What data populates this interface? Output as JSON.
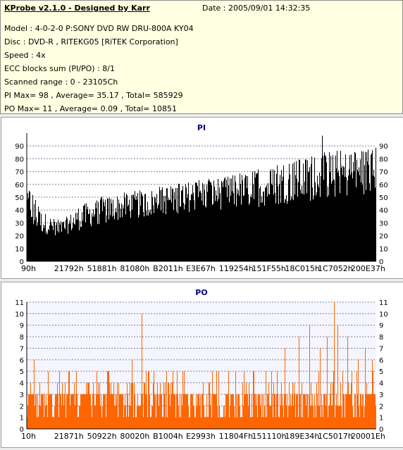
{
  "info": {
    "title": "KProbe v2.1.0 - Designed by Karr",
    "date": "Date : 2005/09/01 14:32:35",
    "lines": [
      "Model : 4-0-2-0 P:SONY    DVD RW DRU-800A  KY04",
      "Disc : DVD-R , RITEKG05 [RiTEK Corporation]",
      "Speed : 4x",
      "ECC blocks sum (PI/PO) : 8/1",
      "Scanned range : 0 - 23105Ch",
      "PI Max= 98 , Average= 35.17 , Total= 585929",
      "PO Max= 11 , Average= 0.09 , Total= 10851"
    ]
  },
  "chart_data": [
    {
      "type": "area",
      "title": "PI",
      "color": "#000000",
      "xlabel": "",
      "ylabel": "",
      "ylim": [
        0,
        100
      ],
      "yticks": [
        0,
        10,
        20,
        30,
        40,
        50,
        60,
        70,
        80,
        90
      ],
      "xtick_labels": [
        "90h",
        "21792h",
        "51881h",
        "81080h",
        "B2011h",
        "E3E67h",
        "119254h",
        "151F55h",
        "18C015h",
        "1C7052h",
        "200E37h"
      ],
      "grid": true,
      "envelope": {
        "x_frac": [
          0,
          0.01,
          0.02,
          0.04,
          0.08,
          0.1,
          0.15,
          0.2,
          0.25,
          0.3,
          0.35,
          0.4,
          0.45,
          0.5,
          0.55,
          0.6,
          0.65,
          0.7,
          0.75,
          0.8,
          0.85,
          0.9,
          0.93,
          0.96,
          1.0
        ],
        "peak": [
          55,
          60,
          52,
          40,
          33,
          32,
          43,
          50,
          52,
          55,
          56,
          60,
          62,
          65,
          66,
          68,
          71,
          74,
          78,
          82,
          85,
          87,
          86,
          88,
          90
        ],
        "base": [
          35,
          30,
          25,
          22,
          20,
          20,
          24,
          28,
          31,
          33,
          34,
          36,
          38,
          39,
          40,
          41,
          42,
          43,
          45,
          46,
          48,
          49,
          50,
          51,
          52
        ]
      },
      "max_marker": 98
    },
    {
      "type": "bar",
      "title": "PO",
      "color": "#ff6600",
      "xlabel": "",
      "ylabel": "",
      "ylim": [
        0,
        11
      ],
      "yticks": [
        0,
        1,
        2,
        3,
        4,
        5,
        6,
        7,
        8,
        9,
        10,
        11
      ],
      "xtick_labels": [
        "10h",
        "21871h",
        "50922h",
        "80020h",
        "B1004h",
        "E2993h",
        "11804Fh",
        "151110h",
        "189E34h",
        "1C5017h",
        "20001Eh"
      ],
      "grid": true,
      "baseline_level": 3,
      "spikes": [
        {
          "x_frac": 0.02,
          "v": 6
        },
        {
          "x_frac": 0.06,
          "v": 5
        },
        {
          "x_frac": 0.12,
          "v": 5
        },
        {
          "x_frac": 0.2,
          "v": 5
        },
        {
          "x_frac": 0.3,
          "v": 6
        },
        {
          "x_frac": 0.33,
          "v": 10
        },
        {
          "x_frac": 0.45,
          "v": 5
        },
        {
          "x_frac": 0.55,
          "v": 5
        },
        {
          "x_frac": 0.65,
          "v": 5
        },
        {
          "x_frac": 0.74,
          "v": 7
        },
        {
          "x_frac": 0.78,
          "v": 8
        },
        {
          "x_frac": 0.81,
          "v": 9
        },
        {
          "x_frac": 0.84,
          "v": 7
        },
        {
          "x_frac": 0.86,
          "v": 8
        },
        {
          "x_frac": 0.88,
          "v": 11
        },
        {
          "x_frac": 0.89,
          "v": 9
        },
        {
          "x_frac": 0.92,
          "v": 8
        },
        {
          "x_frac": 0.95,
          "v": 6
        },
        {
          "x_frac": 0.97,
          "v": 7
        },
        {
          "x_frac": 0.99,
          "v": 6
        }
      ]
    }
  ]
}
